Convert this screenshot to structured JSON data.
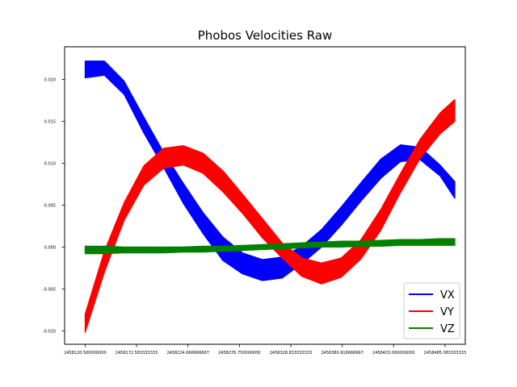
{
  "chart_data": {
    "type": "line",
    "title": "Phobos Velocities Raw",
    "xlabel": "",
    "ylabel": "",
    "xlim": [
      2458099.7,
      2458505.6
    ],
    "ylim": [
      -0.0116,
      0.0239
    ],
    "x_ticks": [
      2458120.5,
      2458172.583333333,
      2458224.666666667,
      2458276.75,
      2458328.833333333,
      2458380.916666667,
      2458433.0,
      2458485.083333333
    ],
    "x_tick_labels": [
      "2458120.500000000",
      "2458172.583333333",
      "2458224.666666667",
      "2458276.750000000",
      "2458328.833333333",
      "2458380.916666667",
      "2458433.000000000",
      "2458485.083333333"
    ],
    "y_ticks": [
      -0.01,
      -0.005,
      0.0,
      0.005,
      0.01,
      0.015,
      0.02
    ],
    "y_tick_labels": [
      "-0.010",
      "-0.005",
      "0.000",
      "0.005",
      "0.010",
      "0.015",
      "0.020"
    ],
    "grid": false,
    "legend": {
      "position": "lower-right",
      "entries": [
        "VX",
        "VY",
        "VZ"
      ]
    },
    "x": [
      2458120.5,
      2458140,
      2458160,
      2458180,
      2458200,
      2458220,
      2458240,
      2458260,
      2458280,
      2458300,
      2458320,
      2458340,
      2458360,
      2458380,
      2458400,
      2458420,
      2458440,
      2458460,
      2458480,
      2458495
    ],
    "series": [
      {
        "name": "VX",
        "color": "#0000ff",
        "upper": [
          0.0222,
          0.0222,
          0.0198,
          0.0155,
          0.0113,
          0.0076,
          0.0041,
          0.0012,
          -0.0007,
          -0.0015,
          -0.0012,
          0.0001,
          0.0021,
          0.0048,
          0.0077,
          0.0105,
          0.0122,
          0.0119,
          0.0098,
          0.0078
        ],
        "lower": [
          0.0202,
          0.0205,
          0.0182,
          0.0136,
          0.0095,
          0.0052,
          0.0016,
          -0.0016,
          -0.0032,
          -0.004,
          -0.0037,
          -0.002,
          0.0,
          0.0026,
          0.0055,
          0.0082,
          0.0102,
          0.0104,
          0.0085,
          0.0058
        ]
      },
      {
        "name": "VY",
        "color": "#ff0000",
        "upper": [
          -0.008,
          -0.0005,
          0.0053,
          0.0097,
          0.0118,
          0.0121,
          0.0112,
          0.0091,
          0.0063,
          0.0034,
          0.0005,
          -0.0013,
          -0.0019,
          -0.0013,
          0.0009,
          0.0045,
          0.0088,
          0.0129,
          0.016,
          0.0176
        ],
        "lower": [
          -0.0102,
          -0.003,
          0.0032,
          0.0074,
          0.0094,
          0.0098,
          0.0088,
          0.0066,
          0.004,
          0.0011,
          -0.0013,
          -0.0035,
          -0.0044,
          -0.0036,
          -0.0014,
          0.002,
          0.0065,
          0.0106,
          0.0135,
          0.015
        ]
      },
      {
        "name": "VZ",
        "color": "#008000",
        "upper": [
          0.0001,
          0.0001,
          0.0,
          0.0,
          0.0,
          0.0,
          0.0001,
          0.0001,
          0.0002,
          0.0003,
          0.0004,
          0.0005,
          0.0006,
          0.0007,
          0.0007,
          0.0008,
          0.0009,
          0.0009,
          0.001,
          0.001
        ],
        "lower": [
          -0.0008,
          -0.0008,
          -0.0007,
          -0.0007,
          -0.0007,
          -0.0006,
          -0.0006,
          -0.0005,
          -0.0004,
          -0.0003,
          -0.0002,
          -0.0001,
          0.0,
          0.0,
          0.0001,
          0.0001,
          0.0002,
          0.0002,
          0.0002,
          0.0002
        ]
      }
    ]
  }
}
